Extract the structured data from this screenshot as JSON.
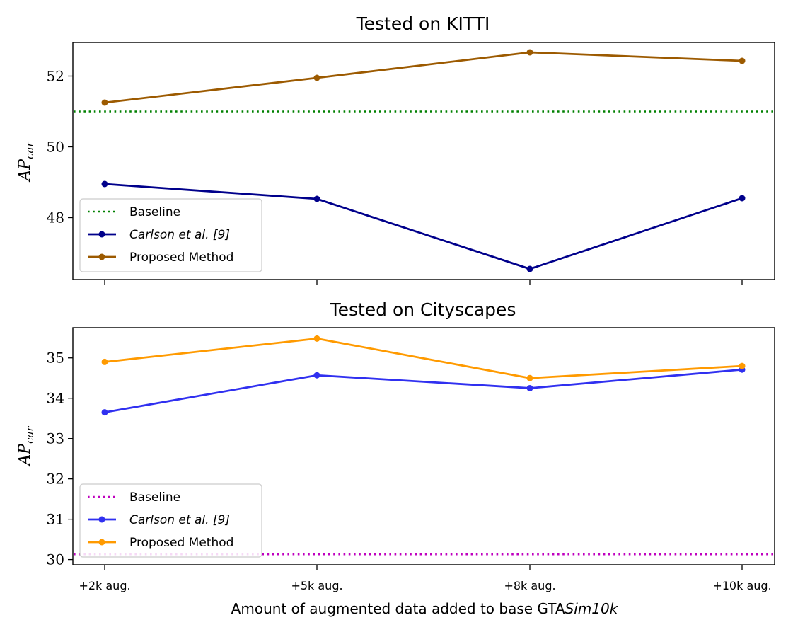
{
  "chart_data": [
    {
      "type": "line",
      "title": "Tested on KITTI",
      "ylabel": "AP",
      "ylabel_sub": "car",
      "xlabel": "",
      "categories": [
        "+2k aug.",
        "+5k aug.",
        "+8k aug.",
        "+10k aug."
      ],
      "ylim": [
        46.25,
        52.95
      ],
      "yticks": [
        48,
        50,
        52
      ],
      "grid": false,
      "legend_position": "lower-left",
      "baseline": {
        "name": "Baseline",
        "value": 51.0,
        "color": "#008000",
        "style": "dotted"
      },
      "series": [
        {
          "name": "Carlson et al. [9]",
          "italic": true,
          "color": "#00008b",
          "values": [
            48.95,
            48.53,
            46.55,
            48.55
          ]
        },
        {
          "name": "Proposed Method",
          "italic": false,
          "color": "#9c5a00",
          "values": [
            51.25,
            51.95,
            52.67,
            52.43
          ]
        }
      ]
    },
    {
      "type": "line",
      "title": "Tested on Cityscapes",
      "ylabel": "AP",
      "ylabel_sub": "car",
      "xlabel": "Amount of augmented data added to base GTA",
      "xlabel_italic": "Sim10k",
      "categories": [
        "+2k aug.",
        "+5k aug.",
        "+8k aug.",
        "+10k aug."
      ],
      "ylim": [
        29.87,
        35.75
      ],
      "yticks": [
        30,
        31,
        32,
        33,
        34,
        35
      ],
      "grid": false,
      "legend_position": "lower-left",
      "baseline": {
        "name": "Baseline",
        "value": 30.13,
        "color": "#bf00bf",
        "style": "dotted"
      },
      "series": [
        {
          "name": "Carlson et al. [9]",
          "italic": true,
          "color": "#3030f0",
          "values": [
            33.65,
            34.57,
            34.25,
            34.71
          ]
        },
        {
          "name": "Proposed Method",
          "italic": false,
          "color": "#ff9a00",
          "values": [
            34.9,
            35.48,
            34.5,
            34.8
          ]
        }
      ]
    }
  ]
}
